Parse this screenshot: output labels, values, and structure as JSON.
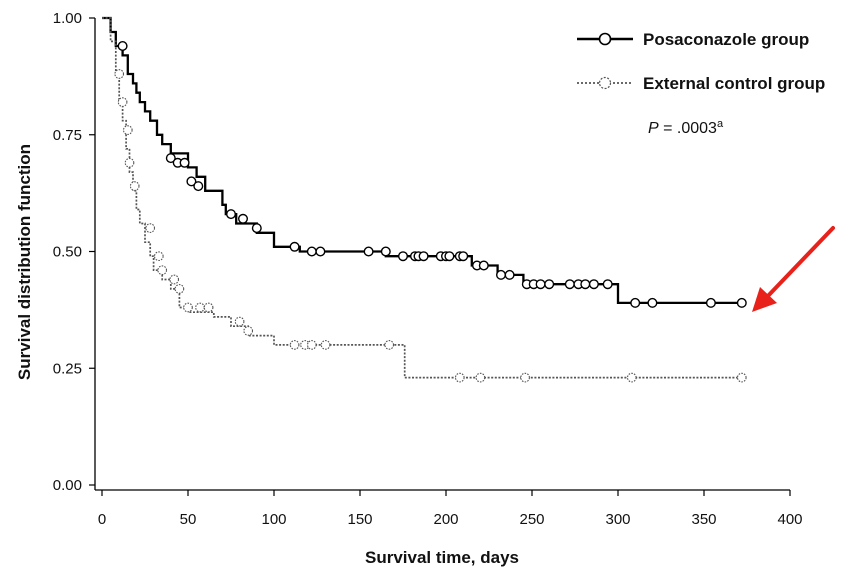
{
  "chart_data": {
    "type": "line",
    "style": "kaplan-meier step curves with censoring circles",
    "xlabel": "Survival time, days",
    "ylabel": "Survival distribution function",
    "xlim": [
      0,
      400
    ],
    "ylim": [
      0.0,
      1.0
    ],
    "x_ticks": [
      "0",
      "50",
      "100",
      "150",
      "200",
      "250",
      "300",
      "350",
      "400"
    ],
    "y_ticks": [
      "0.00",
      "0.25",
      "0.50",
      "0.75",
      "1.00"
    ],
    "grid": false,
    "legend_position": "top-right",
    "annotation": {
      "p_label": "P",
      "p_value": " = .0003",
      "p_sup": "a"
    },
    "arrow": {
      "color": "#e8221b",
      "points_to": "end of Posaconazole group curve"
    },
    "series": [
      {
        "name": "Posaconazole group",
        "color": "#000000",
        "steps": [
          [
            0,
            1.0
          ],
          [
            5,
            0.97
          ],
          [
            8,
            0.94
          ],
          [
            12,
            0.92
          ],
          [
            15,
            0.88
          ],
          [
            18,
            0.86
          ],
          [
            20,
            0.84
          ],
          [
            22,
            0.82
          ],
          [
            25,
            0.8
          ],
          [
            28,
            0.78
          ],
          [
            32,
            0.75
          ],
          [
            35,
            0.73
          ],
          [
            40,
            0.71
          ],
          [
            50,
            0.68
          ],
          [
            55,
            0.66
          ],
          [
            60,
            0.63
          ],
          [
            70,
            0.6
          ],
          [
            72,
            0.58
          ],
          [
            78,
            0.56
          ],
          [
            90,
            0.54
          ],
          [
            100,
            0.51
          ],
          [
            115,
            0.5
          ],
          [
            165,
            0.49
          ],
          [
            200,
            0.49
          ],
          [
            215,
            0.47
          ],
          [
            230,
            0.45
          ],
          [
            245,
            0.43
          ],
          [
            300,
            0.39
          ],
          [
            372,
            0.39
          ]
        ],
        "censored": [
          [
            12,
            0.94
          ],
          [
            40,
            0.7
          ],
          [
            44,
            0.69
          ],
          [
            48,
            0.69
          ],
          [
            52,
            0.65
          ],
          [
            56,
            0.64
          ],
          [
            75,
            0.58
          ],
          [
            82,
            0.57
          ],
          [
            90,
            0.55
          ],
          [
            112,
            0.51
          ],
          [
            122,
            0.5
          ],
          [
            127,
            0.5
          ],
          [
            155,
            0.5
          ],
          [
            165,
            0.5
          ],
          [
            175,
            0.49
          ],
          [
            182,
            0.49
          ],
          [
            184,
            0.49
          ],
          [
            187,
            0.49
          ],
          [
            197,
            0.49
          ],
          [
            200,
            0.49
          ],
          [
            202,
            0.49
          ],
          [
            208,
            0.49
          ],
          [
            210,
            0.49
          ],
          [
            218,
            0.47
          ],
          [
            222,
            0.47
          ],
          [
            232,
            0.45
          ],
          [
            237,
            0.45
          ],
          [
            247,
            0.43
          ],
          [
            251,
            0.43
          ],
          [
            255,
            0.43
          ],
          [
            260,
            0.43
          ],
          [
            272,
            0.43
          ],
          [
            277,
            0.43
          ],
          [
            281,
            0.43
          ],
          [
            286,
            0.43
          ],
          [
            294,
            0.43
          ],
          [
            310,
            0.39
          ],
          [
            320,
            0.39
          ],
          [
            354,
            0.39
          ],
          [
            372,
            0.39
          ]
        ]
      },
      {
        "name": "External control group",
        "color": "#555555",
        "steps": [
          [
            0,
            1.0
          ],
          [
            5,
            0.95
          ],
          [
            8,
            0.88
          ],
          [
            10,
            0.82
          ],
          [
            12,
            0.78
          ],
          [
            14,
            0.72
          ],
          [
            16,
            0.67
          ],
          [
            18,
            0.63
          ],
          [
            20,
            0.59
          ],
          [
            22,
            0.56
          ],
          [
            25,
            0.52
          ],
          [
            28,
            0.49
          ],
          [
            30,
            0.46
          ],
          [
            35,
            0.44
          ],
          [
            40,
            0.42
          ],
          [
            45,
            0.38
          ],
          [
            50,
            0.37
          ],
          [
            65,
            0.36
          ],
          [
            75,
            0.34
          ],
          [
            85,
            0.32
          ],
          [
            100,
            0.3
          ],
          [
            175,
            0.3
          ],
          [
            176,
            0.23
          ],
          [
            372,
            0.23
          ]
        ],
        "censored": [
          [
            10,
            0.88
          ],
          [
            12,
            0.82
          ],
          [
            15,
            0.76
          ],
          [
            16,
            0.69
          ],
          [
            19,
            0.64
          ],
          [
            28,
            0.55
          ],
          [
            33,
            0.49
          ],
          [
            35,
            0.46
          ],
          [
            42,
            0.44
          ],
          [
            45,
            0.42
          ],
          [
            50,
            0.38
          ],
          [
            57,
            0.38
          ],
          [
            62,
            0.38
          ],
          [
            80,
            0.35
          ],
          [
            85,
            0.33
          ],
          [
            112,
            0.3
          ],
          [
            118,
            0.3
          ],
          [
            122,
            0.3
          ],
          [
            130,
            0.3
          ],
          [
            167,
            0.3
          ],
          [
            208,
            0.23
          ],
          [
            220,
            0.23
          ],
          [
            246,
            0.23
          ],
          [
            308,
            0.23
          ],
          [
            372,
            0.23
          ]
        ]
      }
    ]
  }
}
